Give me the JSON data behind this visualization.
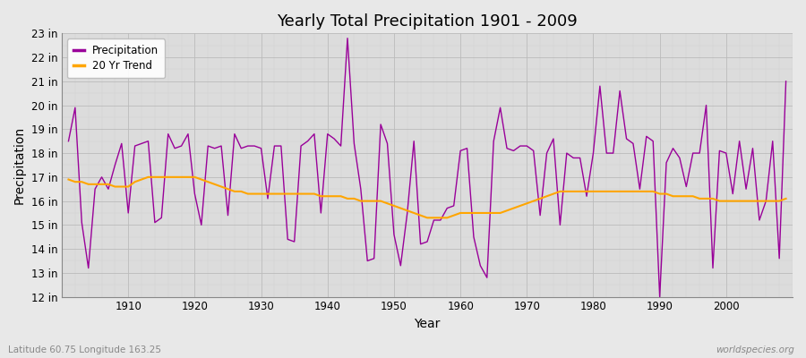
{
  "title": "Yearly Total Precipitation 1901 - 2009",
  "xlabel": "Year",
  "ylabel": "Precipitation",
  "lat_lon_label": "Latitude 60.75 Longitude 163.25",
  "watermark": "worldspecies.org",
  "precip_color": "#990099",
  "trend_color": "#FFA500",
  "bg_color": "#E8E8E8",
  "plot_bg_color": "#DCDCDC",
  "ylim": [
    12,
    23
  ],
  "xlim": [
    1900,
    2010
  ],
  "years": [
    1901,
    1902,
    1903,
    1904,
    1905,
    1906,
    1907,
    1908,
    1909,
    1910,
    1911,
    1912,
    1913,
    1914,
    1915,
    1916,
    1917,
    1918,
    1919,
    1920,
    1921,
    1922,
    1923,
    1924,
    1925,
    1926,
    1927,
    1928,
    1929,
    1930,
    1931,
    1932,
    1933,
    1934,
    1935,
    1936,
    1937,
    1938,
    1939,
    1940,
    1941,
    1942,
    1943,
    1944,
    1945,
    1946,
    1947,
    1948,
    1949,
    1950,
    1951,
    1952,
    1953,
    1954,
    1955,
    1956,
    1957,
    1958,
    1959,
    1960,
    1961,
    1962,
    1963,
    1964,
    1965,
    1966,
    1967,
    1968,
    1969,
    1970,
    1971,
    1972,
    1973,
    1974,
    1975,
    1976,
    1977,
    1978,
    1979,
    1980,
    1981,
    1982,
    1983,
    1984,
    1985,
    1986,
    1987,
    1988,
    1989,
    1990,
    1991,
    1992,
    1993,
    1994,
    1995,
    1996,
    1997,
    1998,
    1999,
    2000,
    2001,
    2002,
    2003,
    2004,
    2005,
    2006,
    2007,
    2008,
    2009
  ],
  "precip": [
    18.5,
    19.9,
    15.1,
    13.2,
    16.5,
    17.0,
    16.5,
    17.5,
    18.4,
    15.5,
    18.3,
    18.4,
    18.5,
    15.1,
    15.3,
    18.8,
    18.2,
    18.3,
    18.8,
    16.3,
    15.0,
    18.3,
    18.2,
    18.3,
    15.4,
    18.8,
    18.2,
    18.3,
    18.3,
    18.2,
    16.1,
    18.3,
    18.3,
    14.4,
    14.3,
    18.3,
    18.5,
    18.8,
    15.5,
    18.8,
    18.6,
    18.3,
    22.8,
    18.4,
    16.5,
    13.5,
    13.6,
    19.2,
    18.4,
    14.6,
    13.3,
    15.5,
    18.5,
    14.2,
    14.3,
    15.2,
    15.2,
    15.7,
    15.8,
    18.1,
    18.2,
    14.5,
    13.3,
    12.8,
    18.5,
    19.9,
    18.2,
    18.1,
    18.3,
    18.3,
    18.1,
    15.4,
    18.0,
    18.6,
    15.0,
    18.0,
    17.8,
    17.8,
    16.2,
    18.0,
    20.8,
    18.0,
    18.0,
    20.6,
    18.6,
    18.4,
    16.5,
    18.7,
    18.5,
    12.0,
    17.6,
    18.2,
    17.8,
    16.6,
    18.0,
    18.0,
    20.0,
    13.2,
    18.1,
    18.0,
    16.3,
    18.5,
    16.5,
    18.2,
    15.2,
    16.0,
    18.5,
    13.6,
    21.0
  ],
  "trend": [
    16.9,
    16.8,
    16.8,
    16.7,
    16.7,
    16.7,
    16.7,
    16.6,
    16.6,
    16.6,
    16.8,
    16.9,
    17.0,
    17.0,
    17.0,
    17.0,
    17.0,
    17.0,
    17.0,
    17.0,
    16.9,
    16.8,
    16.7,
    16.6,
    16.5,
    16.4,
    16.4,
    16.3,
    16.3,
    16.3,
    16.3,
    16.3,
    16.3,
    16.3,
    16.3,
    16.3,
    16.3,
    16.3,
    16.2,
    16.2,
    16.2,
    16.2,
    16.1,
    16.1,
    16.0,
    16.0,
    16.0,
    16.0,
    15.9,
    15.8,
    15.7,
    15.6,
    15.5,
    15.4,
    15.3,
    15.3,
    15.3,
    15.3,
    15.4,
    15.5,
    15.5,
    15.5,
    15.5,
    15.5,
    15.5,
    15.5,
    15.6,
    15.7,
    15.8,
    15.9,
    16.0,
    16.1,
    16.2,
    16.3,
    16.4,
    16.4,
    16.4,
    16.4,
    16.4,
    16.4,
    16.4,
    16.4,
    16.4,
    16.4,
    16.4,
    16.4,
    16.4,
    16.4,
    16.4,
    16.3,
    16.3,
    16.2,
    16.2,
    16.2,
    16.2,
    16.1,
    16.1,
    16.1,
    16.0,
    16.0,
    16.0,
    16.0,
    16.0,
    16.0,
    16.0,
    16.0,
    16.0,
    16.0,
    16.1
  ]
}
